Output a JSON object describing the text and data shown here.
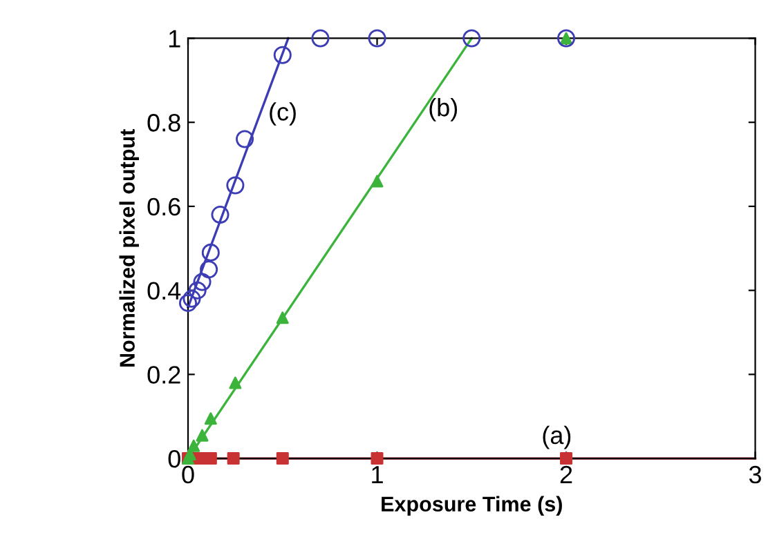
{
  "chart_data": {
    "type": "scatter",
    "xlabel": "Exposure Time (s)",
    "ylabel": "Normalized pixel output",
    "xlim": [
      0,
      3
    ],
    "ylim": [
      0,
      1
    ],
    "xticks": [
      0,
      1,
      2,
      3
    ],
    "yticks": [
      0,
      0.2,
      0.4,
      0.6,
      0.8,
      1
    ],
    "grid": false,
    "legend": false,
    "series": [
      {
        "type": "line",
        "color": "#a01818",
        "marker": "none",
        "x": [
          0,
          3
        ],
        "values": [
          0,
          0
        ]
      },
      {
        "type": "line",
        "color": "#3cb43c",
        "marker": "none",
        "x": [
          0,
          1.5
        ],
        "values": [
          0,
          1
        ]
      },
      {
        "type": "line",
        "color": "#3c3cb4",
        "marker": "none",
        "x": [
          0,
          0.53
        ],
        "values": [
          0.36,
          1
        ]
      },
      {
        "color": "#c83232",
        "marker": "square",
        "x": [
          0,
          0.06,
          0.12,
          0.24,
          0.5,
          1,
          2
        ],
        "values": [
          0,
          0,
          0,
          0,
          0,
          0,
          0
        ]
      },
      {
        "color": "#3cb43c",
        "marker": "triangle",
        "x": [
          0,
          0.01,
          0.03,
          0.075,
          0.12,
          0.25,
          0.5,
          1,
          2
        ],
        "values": [
          0,
          0.01,
          0.03,
          0.055,
          0.095,
          0.18,
          0.335,
          0.66,
          1
        ]
      },
      {
        "color": "#3c3cb4",
        "marker": "circle",
        "x": [
          0,
          0.02,
          0.05,
          0.075,
          0.11,
          0.12,
          0.17,
          0.25,
          0.3,
          0.5,
          0.7,
          1,
          1.5,
          2
        ],
        "values": [
          0.37,
          0.38,
          0.4,
          0.42,
          0.45,
          0.49,
          0.58,
          0.65,
          0.76,
          0.96,
          1,
          1,
          1,
          1
        ]
      }
    ],
    "annotations": [
      "(c)",
      "(b)",
      "(a)"
    ]
  }
}
